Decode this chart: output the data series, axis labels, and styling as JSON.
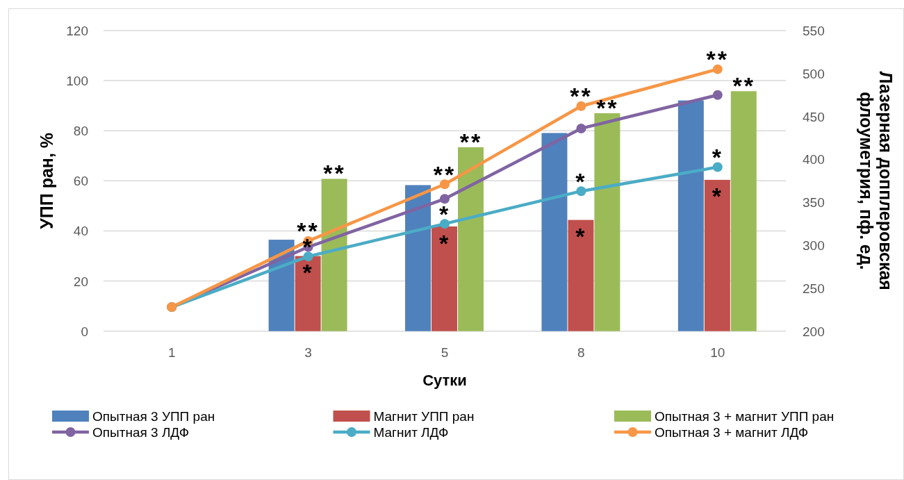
{
  "chart_data": {
    "type": "bar",
    "xlabel": "Сутки",
    "ylabel": "УПП ран, %",
    "y2label": "Лазерная допплеровская флоуметрия, пф. ед.",
    "categories": [
      "1",
      "3",
      "5",
      "8",
      "10"
    ],
    "series": [
      {
        "name": "Опытная 3 УПП ран",
        "color": "#4f81bd",
        "values": [
          null,
          36.5,
          58.3,
          79.1,
          92.1
        ]
      },
      {
        "name": "Магнит УПП ран",
        "color": "#c0504d",
        "values": [
          null,
          30.0,
          41.8,
          44.4,
          60.4
        ],
        "value_labels": [
          null,
          "*",
          "*",
          "*",
          "*"
        ]
      },
      {
        "name": "Опытная 3 + магнит УПП ран",
        "color": "#9bbb59",
        "values": [
          null,
          60.8,
          73.4,
          87.0,
          95.8
        ],
        "value_labels": [
          null,
          "**",
          "**",
          "**",
          "**"
        ]
      },
      {
        "name": "Опытная 3 ЛДФ",
        "type": "line",
        "axis": "y2",
        "color": "#8064a2",
        "values": [
          228,
          298,
          354,
          436,
          475
        ]
      },
      {
        "name": "Магнит ЛДФ",
        "type": "line",
        "axis": "y2",
        "color": "#4bacc6",
        "values": [
          228,
          287,
          325,
          363,
          391
        ],
        "value_labels": [
          null,
          "*",
          "*",
          "*",
          "*"
        ]
      },
      {
        "name": "Опытная 3 + магнит ЛДФ",
        "type": "line",
        "axis": "y2",
        "color": "#f79646",
        "values": [
          228,
          305,
          371,
          462,
          505
        ],
        "value_labels": [
          null,
          "**",
          "**",
          "**",
          "**"
        ]
      }
    ],
    "ylim": [
      0,
      120
    ],
    "yticks": [
      0,
      20,
      40,
      60,
      80,
      100,
      120
    ],
    "y2lim": [
      200,
      550
    ],
    "y2ticks": [
      200,
      250,
      300,
      350,
      400,
      450,
      500,
      550
    ],
    "grid": "y",
    "legend": "bottom",
    "marker": "circle"
  }
}
